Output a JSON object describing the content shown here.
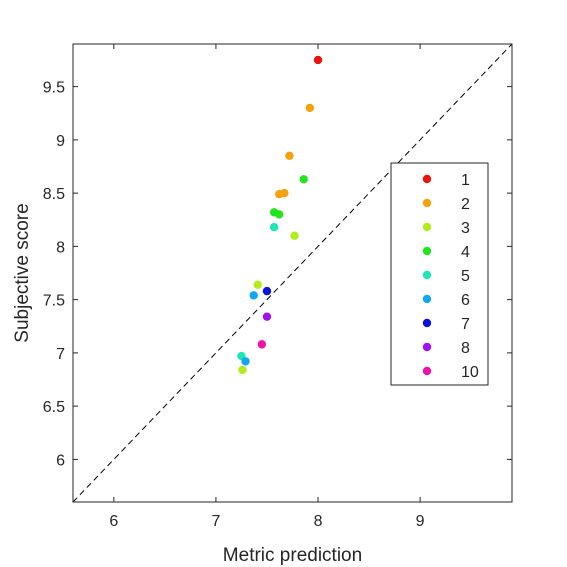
{
  "chart_data": {
    "type": "scatter",
    "xlabel": "Metric prediction",
    "ylabel": "Subjective score",
    "xlim": [
      5.6,
      9.9
    ],
    "ylim": [
      5.6,
      9.9
    ],
    "xticks": [
      6,
      7,
      8,
      9
    ],
    "yticks": [
      6,
      6.5,
      7,
      7.5,
      8,
      8.5,
      9,
      9.5
    ],
    "xtick_labels": [
      "6",
      "7",
      "8",
      "9"
    ],
    "ytick_labels": [
      "6",
      "6.5",
      "7",
      "7.5",
      "8",
      "8.5",
      "9",
      "9.5"
    ],
    "grid": false,
    "reference_line": "y = x (dashed)",
    "legend_position": "right",
    "series": [
      {
        "name": "1",
        "color": "#e8140d",
        "points": [
          [
            8.0,
            9.75
          ]
        ]
      },
      {
        "name": "2",
        "color": "#f5a20c",
        "points": [
          [
            7.92,
            9.3
          ],
          [
            7.72,
            8.85
          ],
          [
            7.67,
            8.5
          ],
          [
            7.62,
            8.49
          ]
        ]
      },
      {
        "name": "3",
        "color": "#b2ec1c",
        "points": [
          [
            7.77,
            8.1
          ],
          [
            7.41,
            7.64
          ],
          [
            7.26,
            6.84
          ]
        ]
      },
      {
        "name": "4",
        "color": "#22e41f",
        "points": [
          [
            7.86,
            8.63
          ],
          [
            7.57,
            8.32
          ],
          [
            7.62,
            8.3
          ]
        ]
      },
      {
        "name": "5",
        "color": "#1de5b6",
        "points": [
          [
            7.57,
            8.18
          ],
          [
            7.25,
            6.97
          ]
        ]
      },
      {
        "name": "6",
        "color": "#12a8ef",
        "points": [
          [
            7.37,
            7.54
          ],
          [
            7.29,
            6.92
          ]
        ]
      },
      {
        "name": "7",
        "color": "#0d13d6",
        "points": [
          [
            7.5,
            7.58
          ]
        ]
      },
      {
        "name": "8",
        "color": "#a012ef",
        "points": [
          [
            7.5,
            7.34
          ]
        ]
      },
      {
        "name": "10",
        "color": "#ef12a8",
        "points": [
          [
            7.45,
            7.08
          ]
        ]
      }
    ]
  }
}
